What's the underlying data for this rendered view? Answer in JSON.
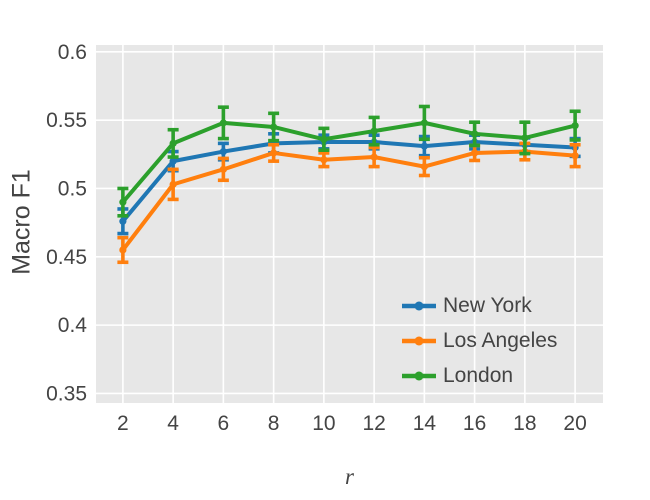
{
  "figure": {
    "y_axis_title": "Macro F1",
    "x_axis_title": "r"
  },
  "chart_data": {
    "type": "line",
    "title": "",
    "xlabel": "r",
    "ylabel": "Macro F1",
    "x": [
      2,
      4,
      6,
      8,
      10,
      12,
      14,
      16,
      18,
      20
    ],
    "series": [
      {
        "name": "New York",
        "color": "#1f77b4",
        "values": [
          0.476,
          0.52,
          0.527,
          0.533,
          0.534,
          0.534,
          0.531,
          0.534,
          0.532,
          0.53
        ],
        "errors": [
          0.009,
          0.007,
          0.006,
          0.007,
          0.005,
          0.005,
          0.007,
          0.005,
          0.005,
          0.0065
        ]
      },
      {
        "name": "Los Angeles",
        "color": "#ff7f0e",
        "values": [
          0.455,
          0.503,
          0.514,
          0.526,
          0.521,
          0.523,
          0.516,
          0.526,
          0.527,
          0.524
        ],
        "errors": [
          0.009,
          0.011,
          0.008,
          0.006,
          0.005,
          0.007,
          0.0065,
          0.0055,
          0.006,
          0.008
        ]
      },
      {
        "name": "London",
        "color": "#2ca02c",
        "values": [
          0.49,
          0.533,
          0.548,
          0.545,
          0.536,
          0.542,
          0.548,
          0.54,
          0.537,
          0.546
        ],
        "errors": [
          0.01,
          0.01,
          0.0115,
          0.01,
          0.008,
          0.01,
          0.012,
          0.0085,
          0.0115,
          0.0105
        ]
      }
    ],
    "x_ticks": [
      2,
      4,
      6,
      8,
      10,
      12,
      14,
      16,
      18,
      20
    ],
    "y_ticks": [
      0.35,
      0.4,
      0.45,
      0.5,
      0.55,
      0.6
    ],
    "xlim": [
      0.93,
      21.11
    ],
    "ylim": [
      0.343,
      0.605
    ],
    "grid": true,
    "legend_position": "lower right",
    "plot_bg": "#e7e7e7",
    "grid_color": "#ffffff",
    "text_color": "#444444"
  }
}
